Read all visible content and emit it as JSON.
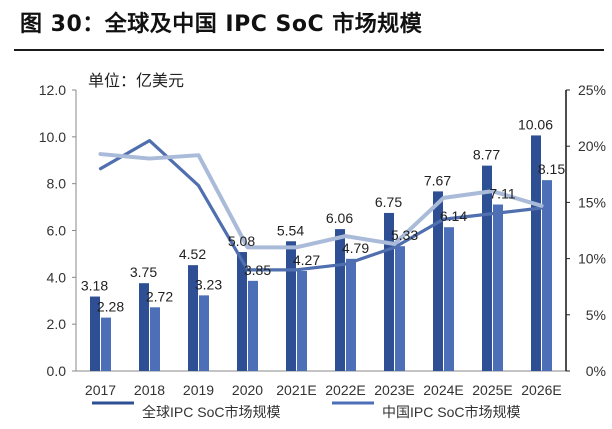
{
  "title": "图 30：全球及中国 IPC SoC 市场规模",
  "chart_data": {
    "type": "bar",
    "unit_label": "单位：亿美元",
    "categories": [
      "2017",
      "2018",
      "2019",
      "2020",
      "2021E",
      "2022E",
      "2023E",
      "2024E",
      "2025E",
      "2026E"
    ],
    "series": [
      {
        "values": [
          3.18,
          3.75,
          4.52,
          5.08,
          5.54,
          6.06,
          6.75,
          7.67,
          8.77,
          10.06
        ],
        "color": "#2f4f95"
      },
      {
        "values": [
          2.28,
          2.72,
          3.23,
          3.85,
          4.27,
          4.79,
          5.33,
          6.14,
          7.11,
          8.15
        ],
        "color": "#4d6fb8"
      }
    ],
    "lines": [
      {
        "values": [
          18.0,
          20.5,
          16.5,
          9.0,
          9.0,
          9.5,
          11.0,
          13.5,
          14.0,
          14.5
        ],
        "color": "#4f6fae",
        "axis": "right"
      },
      {
        "values": [
          19.3,
          18.9,
          19.2,
          11.0,
          11.0,
          12.0,
          11.3,
          15.4,
          16.0,
          14.7
        ],
        "color": "#a9bbd9",
        "axis": "right"
      }
    ],
    "y_left": {
      "min": 0,
      "max": 12,
      "ticks": [
        "0.0",
        "2.0",
        "4.0",
        "6.0",
        "8.0",
        "10.0",
        "12.0"
      ]
    },
    "y_right": {
      "min": 0,
      "max": 25,
      "ticks": [
        "0%",
        "5%",
        "10%",
        "15%",
        "20%",
        "25%"
      ]
    },
    "legend": [
      "全球IPC SoC市场规模",
      "中国IPC SoC市场规模"
    ]
  }
}
